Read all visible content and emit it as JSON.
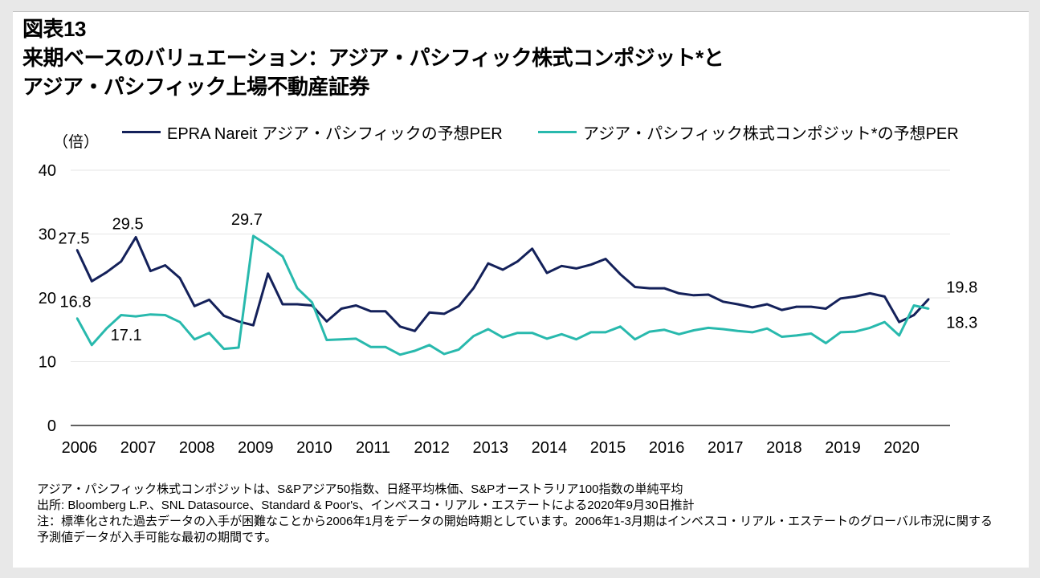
{
  "header": {
    "figure_number": "図表13",
    "title_line1": "来期ベースのバリュエーション：アジア・パシフィック株式コンポジット*と",
    "title_line2": "アジア・パシフィック上場不動産証券"
  },
  "colors": {
    "series1": "#14215a",
    "series2": "#28b9ad",
    "axis": "#000000",
    "grid": "#e6e6e6"
  },
  "chart_data": {
    "type": "line",
    "title": "来期ベースのバリュエーション：アジア・パシフィック株式コンポジット*とアジア・パシフィック上場不動産証券",
    "ylabel": "（倍）",
    "xlabel": "",
    "ylim": [
      0,
      40
    ],
    "yticks": [
      "0",
      "10",
      "20",
      "30",
      "40"
    ],
    "xlim": [
      2006,
      2020.75
    ],
    "xticks": [
      "2006",
      "2007",
      "2008",
      "2009",
      "2010",
      "2011",
      "2012",
      "2013",
      "2014",
      "2015",
      "2016",
      "2017",
      "2018",
      "2019",
      "2020"
    ],
    "legend_position": "top",
    "series": [
      {
        "name": "EPRA Nareit アジア・パシフィックの予想PER",
        "color": "#14215a",
        "values": [
          27.5,
          22.6,
          24.0,
          25.7,
          29.5,
          24.2,
          25.1,
          23.1,
          18.7,
          19.7,
          17.2,
          16.3,
          15.7,
          23.8,
          19.0,
          19.0,
          18.8,
          16.3,
          18.3,
          18.8,
          17.9,
          17.9,
          15.5,
          14.8,
          17.7,
          17.5,
          18.7,
          21.5,
          25.4,
          24.4,
          25.7,
          27.7,
          23.9,
          25.0,
          24.6,
          25.2,
          26.1,
          23.7,
          21.7,
          21.5,
          21.5,
          20.7,
          20.4,
          20.5,
          19.4,
          19.0,
          18.5,
          19.0,
          18.1,
          18.6,
          18.6,
          18.3,
          19.9,
          20.2,
          20.7,
          20.2,
          16.2,
          17.3,
          19.8
        ],
        "labels": [
          {
            "index": 0,
            "text": "27.5"
          },
          {
            "index": 4,
            "text": "29.5"
          },
          {
            "index": 58,
            "text": "19.8"
          }
        ]
      },
      {
        "name": "アジア・パシフィック株式コンポジット*の予想PER",
        "color": "#28b9ad",
        "values": [
          16.8,
          12.6,
          15.2,
          17.3,
          17.1,
          17.4,
          17.3,
          16.2,
          13.5,
          14.5,
          12.0,
          12.2,
          29.7,
          28.2,
          26.5,
          21.5,
          19.3,
          13.4,
          13.5,
          13.6,
          12.3,
          12.3,
          11.1,
          11.7,
          12.6,
          11.2,
          11.9,
          14.0,
          15.1,
          13.8,
          14.5,
          14.5,
          13.6,
          14.3,
          13.5,
          14.6,
          14.6,
          15.5,
          13.5,
          14.7,
          15.0,
          14.3,
          14.9,
          15.3,
          15.1,
          14.8,
          14.6,
          15.2,
          13.9,
          14.1,
          14.4,
          12.9,
          14.6,
          14.7,
          15.3,
          16.2,
          14.1,
          18.8,
          18.3
        ],
        "labels": [
          {
            "index": 0,
            "text": "16.8"
          },
          {
            "index": 4,
            "text": "17.1"
          },
          {
            "index": 12,
            "text": "29.7"
          },
          {
            "index": 58,
            "text": "18.3"
          }
        ]
      }
    ]
  },
  "notes": [
    "アジア・パシフィック株式コンポジットは、S&Pアジア50指数、日経平均株価、S&Pオーストラリア100指数の単純平均",
    "出所: Bloomberg L.P.、SNL Datasource、Standard & Poor's、インベスコ・リアル・エステートによる2020年9月30日推計",
    "注：標準化された過去データの入手が困難なことから2006年1月をデータの開始時期としています。2006年1-3月期はインベスコ・リアル・エステートのグローバル市況に関する",
    "予測値データが入手可能な最初の期間です。"
  ]
}
